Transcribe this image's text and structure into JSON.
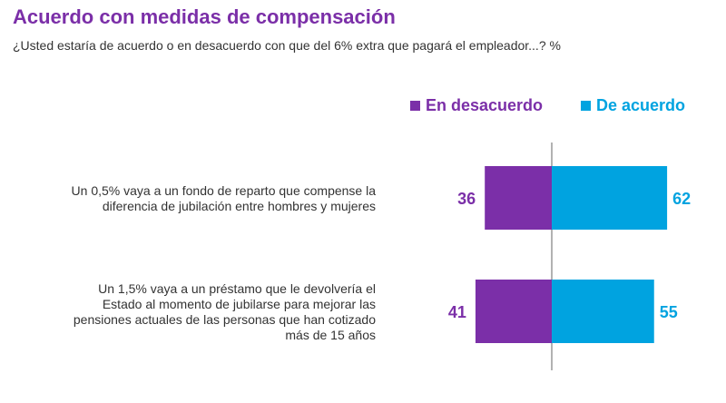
{
  "chart_data": {
    "type": "bar",
    "orientation": "horizontal-diverging",
    "title": "Acuerdo con medidas de compensación",
    "subtitle": "¿Usted estaría de acuerdo o en desacuerdo con que del 6% extra que pagará el empleador...? %",
    "legend_position": "top-right",
    "categories": [
      [
        "Un 0,5% vaya a un fondo de reparto que compense la",
        "diferencia de jubilación entre hombres y mujeres"
      ],
      [
        "Un 1,5% vaya a un préstamo que le devolvería el",
        "Estado al momento de jubilarse para mejorar las",
        "pensiones actuales de las personas que han cotizado",
        "más de 15 años"
      ]
    ],
    "series": [
      {
        "name": "En desacuerdo",
        "color": "#7b2fa8",
        "values": [
          36,
          41
        ]
      },
      {
        "name": "De acuerdo",
        "color": "#00a3e0",
        "values": [
          62,
          55
        ]
      }
    ],
    "grid": false
  }
}
